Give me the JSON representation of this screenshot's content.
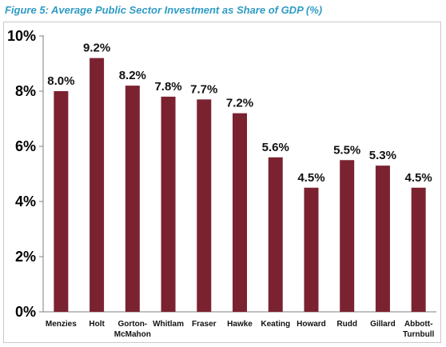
{
  "caption": "Figure 5: Average Public Sector Investment as Share of GDP (%)",
  "chart_data": {
    "type": "bar",
    "title": "Figure 5: Average Public Sector Investment as Share of GDP (%)",
    "categories": [
      "Menzies",
      "Holt",
      "Gorton-\nMcMahon",
      "Whitlam",
      "Fraser",
      "Hawke",
      "Keating",
      "Howard",
      "Rudd",
      "Gillard",
      "Abbott-\nTurnbull"
    ],
    "values": [
      8.0,
      9.2,
      8.2,
      7.8,
      7.7,
      7.2,
      5.6,
      4.5,
      5.5,
      5.3,
      4.5
    ],
    "data_labels": [
      "8.0%",
      "9.2%",
      "8.2%",
      "7.8%",
      "7.7%",
      "7.2%",
      "5.6%",
      "4.5%",
      "5.5%",
      "5.3%",
      "4.5%"
    ],
    "y_ticks": [
      0,
      2,
      4,
      6,
      8,
      10
    ],
    "y_tick_labels": [
      "0%",
      "2%",
      "4%",
      "6%",
      "8%",
      "10%"
    ],
    "ylim": [
      0,
      10
    ],
    "xlabel": "",
    "ylabel": "",
    "grid": false,
    "legend": "none",
    "bar_color": "#7b2230",
    "caption_color": "#2f9bc4"
  }
}
